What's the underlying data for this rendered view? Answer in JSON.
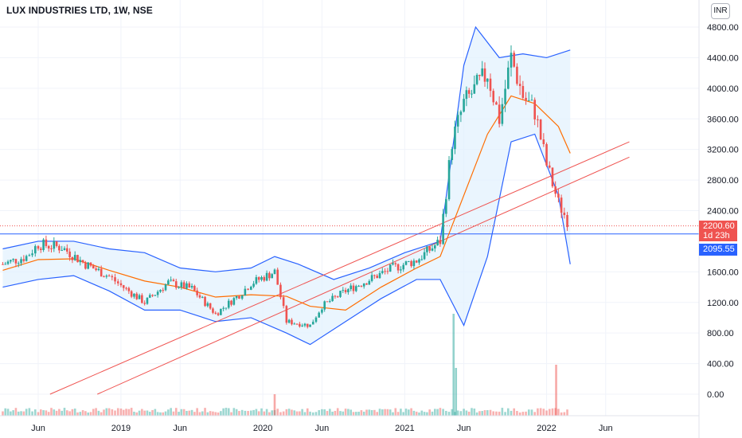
{
  "header": {
    "title": "LUX INDUSTRIES LTD, 1W, NSE",
    "currency": "INR"
  },
  "price_scale": {
    "labels": [
      "4800.00",
      "4400.00",
      "4000.00",
      "3600.00",
      "3200.00",
      "2800.00",
      "2400.00",
      "1600.00",
      "1200.00",
      "800.00",
      "400.00",
      "0.00"
    ]
  },
  "time_scale": {
    "labels": [
      "Jun",
      "2019",
      "Jun",
      "2020",
      "Jun",
      "2021",
      "Jun",
      "2022",
      "Jun"
    ]
  },
  "last_price": {
    "value": "2200.60",
    "countdown": "1d 23h",
    "color": "#ef5350"
  },
  "horizontal_line": {
    "value": "2095.55",
    "color": "#2962ff"
  },
  "colors": {
    "up": "#26a69a",
    "down": "#ef5350",
    "bollinger": "#2962ff",
    "ma": "#ff6d00",
    "trendline": "#ef5350",
    "band_fill": "#e3f2fd"
  },
  "chart_data": {
    "type": "candlestick",
    "symbol": "LUX INDUSTRIES LTD",
    "interval": "1W",
    "exchange": "NSE",
    "y_range": [
      0,
      4900
    ],
    "x_range": [
      "2018-03",
      "2022-08"
    ],
    "price_close_weekly_approx": [
      {
        "date": "2018-03",
        "close": 1700
      },
      {
        "date": "2018-05",
        "close": 1800
      },
      {
        "date": "2018-06",
        "close": 1960
      },
      {
        "date": "2018-08",
        "close": 1920
      },
      {
        "date": "2018-10",
        "close": 1700
      },
      {
        "date": "2018-12",
        "close": 1540
      },
      {
        "date": "2019-01",
        "close": 1420
      },
      {
        "date": "2019-03",
        "close": 1200
      },
      {
        "date": "2019-05",
        "close": 1460
      },
      {
        "date": "2019-07",
        "close": 1380
      },
      {
        "date": "2019-09",
        "close": 1050
      },
      {
        "date": "2019-11",
        "close": 1300
      },
      {
        "date": "2019-12",
        "close": 1450
      },
      {
        "date": "2020-02",
        "close": 1600
      },
      {
        "date": "2020-03",
        "close": 950
      },
      {
        "date": "2020-05",
        "close": 900
      },
      {
        "date": "2020-06",
        "close": 1150
      },
      {
        "date": "2020-08",
        "close": 1350
      },
      {
        "date": "2020-10",
        "close": 1500
      },
      {
        "date": "2020-12",
        "close": 1650
      },
      {
        "date": "2021-02",
        "close": 1750
      },
      {
        "date": "2021-04",
        "close": 2000
      },
      {
        "date": "2021-05",
        "close": 3300
      },
      {
        "date": "2021-06",
        "close": 3800
      },
      {
        "date": "2021-08",
        "close": 4200
      },
      {
        "date": "2021-09",
        "close": 3600
      },
      {
        "date": "2021-10",
        "close": 4400
      },
      {
        "date": "2021-11",
        "close": 3900
      },
      {
        "date": "2021-12",
        "close": 3700
      },
      {
        "date": "2022-01",
        "close": 3000
      },
      {
        "date": "2022-02",
        "close": 2500
      },
      {
        "date": "2022-03",
        "close": 2200.6
      }
    ],
    "bollinger_upper_approx": [
      {
        "date": "2018-03",
        "value": 1900
      },
      {
        "date": "2018-06",
        "value": 2000
      },
      {
        "date": "2018-09",
        "value": 2000
      },
      {
        "date": "2018-12",
        "value": 1900
      },
      {
        "date": "2019-03",
        "value": 1850
      },
      {
        "date": "2019-06",
        "value": 1650
      },
      {
        "date": "2019-09",
        "value": 1600
      },
      {
        "date": "2019-12",
        "value": 1650
      },
      {
        "date": "2020-02",
        "value": 1800
      },
      {
        "date": "2020-04",
        "value": 1700
      },
      {
        "date": "2020-07",
        "value": 1500
      },
      {
        "date": "2020-10",
        "value": 1650
      },
      {
        "date": "2021-01",
        "value": 1850
      },
      {
        "date": "2021-04",
        "value": 2000
      },
      {
        "date": "2021-06",
        "value": 4300
      },
      {
        "date": "2021-07",
        "value": 4800
      },
      {
        "date": "2021-09",
        "value": 4400
      },
      {
        "date": "2021-11",
        "value": 4450
      },
      {
        "date": "2022-01",
        "value": 4400
      },
      {
        "date": "2022-03",
        "value": 4500
      }
    ],
    "bollinger_lower_approx": [
      {
        "date": "2018-03",
        "value": 1400
      },
      {
        "date": "2018-06",
        "value": 1500
      },
      {
        "date": "2018-09",
        "value": 1550
      },
      {
        "date": "2018-12",
        "value": 1350
      },
      {
        "date": "2019-03",
        "value": 1100
      },
      {
        "date": "2019-06",
        "value": 1100
      },
      {
        "date": "2019-09",
        "value": 950
      },
      {
        "date": "2019-12",
        "value": 1000
      },
      {
        "date": "2020-03",
        "value": 800
      },
      {
        "date": "2020-05",
        "value": 650
      },
      {
        "date": "2020-08",
        "value": 950
      },
      {
        "date": "2020-11",
        "value": 1250
      },
      {
        "date": "2021-02",
        "value": 1500
      },
      {
        "date": "2021-04",
        "value": 1500
      },
      {
        "date": "2021-06",
        "value": 900
      },
      {
        "date": "2021-08",
        "value": 1800
      },
      {
        "date": "2021-10",
        "value": 3300
      },
      {
        "date": "2021-12",
        "value": 3400
      },
      {
        "date": "2022-02",
        "value": 2600
      },
      {
        "date": "2022-03",
        "value": 1700
      }
    ],
    "moving_average_approx": [
      {
        "date": "2018-03",
        "value": 1620
      },
      {
        "date": "2018-06",
        "value": 1760
      },
      {
        "date": "2018-09",
        "value": 1770
      },
      {
        "date": "2018-12",
        "value": 1620
      },
      {
        "date": "2019-03",
        "value": 1480
      },
      {
        "date": "2019-06",
        "value": 1400
      },
      {
        "date": "2019-09",
        "value": 1270
      },
      {
        "date": "2019-12",
        "value": 1300
      },
      {
        "date": "2020-03",
        "value": 1280
      },
      {
        "date": "2020-05",
        "value": 1150
      },
      {
        "date": "2020-08",
        "value": 1100
      },
      {
        "date": "2020-11",
        "value": 1400
      },
      {
        "date": "2021-02",
        "value": 1650
      },
      {
        "date": "2021-04",
        "value": 1800
      },
      {
        "date": "2021-06",
        "value": 2600
      },
      {
        "date": "2021-08",
        "value": 3400
      },
      {
        "date": "2021-10",
        "value": 3900
      },
      {
        "date": "2021-12",
        "value": 3800
      },
      {
        "date": "2022-02",
        "value": 3500
      },
      {
        "date": "2022-03",
        "value": 3150
      }
    ],
    "trendlines": [
      {
        "start": {
          "date": "2018-07",
          "value": 0
        },
        "end": {
          "date": "2022-08",
          "value": 3300
        }
      },
      {
        "start": {
          "date": "2018-11",
          "value": 0
        },
        "end": {
          "date": "2022-08",
          "value": 3100
        }
      }
    ],
    "volume": {
      "note": "relative weekly volume bars",
      "spikes": [
        {
          "date": "2020-02",
          "relative": 0.35
        },
        {
          "date": "2021-05",
          "relative": 1.0
        },
        {
          "date": "2021-05b",
          "relative": 0.4
        },
        {
          "date": "2022-01",
          "relative": 0.4
        }
      ]
    }
  }
}
